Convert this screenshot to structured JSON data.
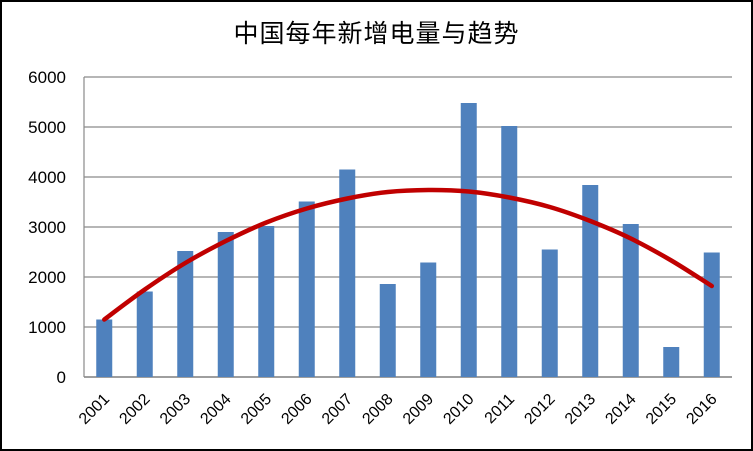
{
  "chart_data": {
    "type": "bar",
    "title": "中国每年新增电量与趋势",
    "categories": [
      "2001",
      "2002",
      "2003",
      "2004",
      "2005",
      "2006",
      "2007",
      "2008",
      "2009",
      "2010",
      "2011",
      "2012",
      "2013",
      "2014",
      "2015",
      "2016"
    ],
    "series": [
      {
        "name": "每年新增电量",
        "kind": "bar",
        "values": [
          1150,
          1710,
          2520,
          2900,
          3020,
          3510,
          4150,
          1860,
          2290,
          5480,
          5020,
          2550,
          3840,
          3060,
          600,
          2490
        ]
      },
      {
        "name": "趋势",
        "kind": "line-smooth",
        "values": [
          1150,
          1750,
          2280,
          2720,
          3090,
          3370,
          3570,
          3700,
          3740,
          3710,
          3590,
          3400,
          3120,
          2770,
          2330,
          1820
        ]
      }
    ],
    "xlabel": "",
    "ylabel": "",
    "ylim": [
      0,
      6000
    ],
    "ytick_step": 1000,
    "yticks": [
      0,
      1000,
      2000,
      3000,
      4000,
      5000,
      6000
    ],
    "grid": true,
    "legend": "none",
    "colors": {
      "bar": "#4f81bd",
      "trend": "#c00000",
      "gridline": "#8a8a8a",
      "axis": "#7f7f7f",
      "text": "#000000",
      "background": "#ffffff",
      "frame_border": "#000000"
    }
  }
}
